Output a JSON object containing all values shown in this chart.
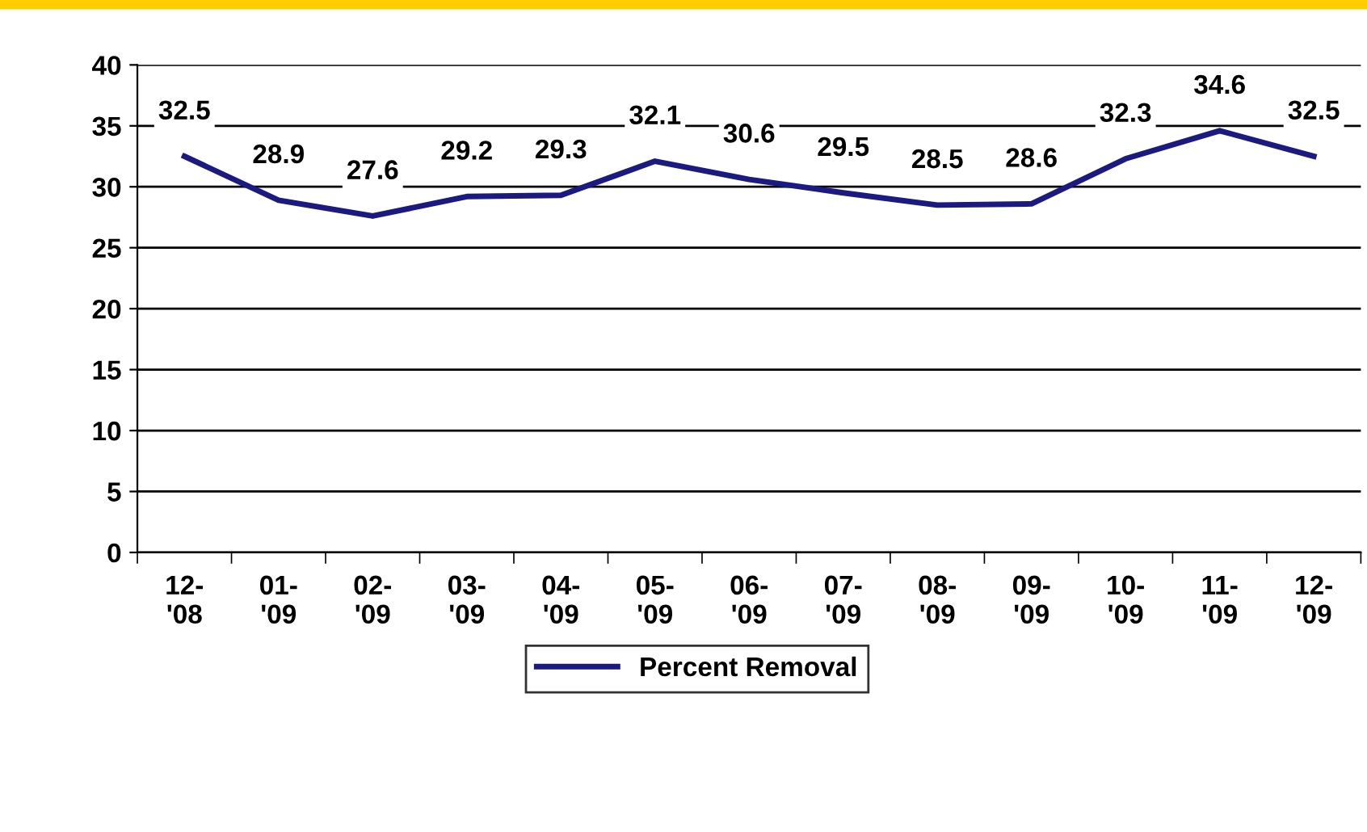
{
  "chart_data": {
    "type": "line",
    "categories": [
      "12-\n'08",
      "01-\n'09",
      "02-\n'09",
      "03-\n'09",
      "04-\n'09",
      "05-\n'09",
      "06-\n'09",
      "07-\n'09",
      "08-\n'09",
      "09-\n'09",
      "10-\n'09",
      "11-\n'09",
      "12-\n'09"
    ],
    "series": [
      {
        "name": "Percent Removal",
        "color": "#1a1a80",
        "values": [
          32.5,
          28.9,
          27.6,
          29.2,
          29.3,
          32.1,
          30.6,
          29.5,
          28.5,
          28.6,
          32.3,
          34.6,
          32.5
        ]
      }
    ],
    "ylim": [
      0,
      40
    ],
    "yticks": [
      0,
      5,
      10,
      15,
      20,
      25,
      30,
      35,
      40
    ],
    "grid": "y",
    "legend": "bottom",
    "data_labels": true,
    "marker": "none",
    "line_style": "solid"
  }
}
